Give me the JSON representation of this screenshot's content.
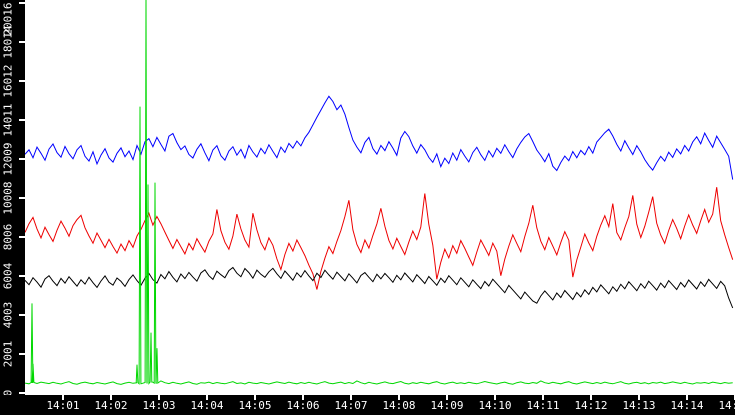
{
  "colors": {
    "axis_strip_bg": "#000000",
    "axis_label": "#ffffff",
    "plot_bg": "#ffffff"
  },
  "chart_data": {
    "type": "line",
    "title": "",
    "xlabel": "",
    "ylabel": "",
    "grid": false,
    "legend": "none",
    "ylim": [
      0,
      20016
    ],
    "xlim_minutes_after_1400": [
      0.2083,
      15.0
    ],
    "y_axis": {
      "tick_values": [
        0,
        2001.6,
        4003.2,
        6004.8,
        8006.4,
        10008,
        12009.6,
        14011.2,
        16012.8,
        18014.4,
        20016
      ],
      "tick_labels": [
        "0",
        "2001",
        "4003",
        "6004",
        "8006",
        "10008",
        "12009",
        "14011",
        "16012",
        "18014",
        "20016"
      ]
    },
    "x_axis": {
      "tick_minutes": [
        1,
        2,
        3,
        4,
        5,
        6,
        7,
        8,
        9,
        10,
        11,
        12,
        13,
        14,
        15
      ],
      "tick_labels": [
        "14:01",
        "14:02",
        "14:03",
        "14:04",
        "14:05",
        "14:06",
        "14:07",
        "14:08",
        "14:09",
        "14:10",
        "14:11",
        "14:12",
        "14:13",
        "14:14",
        "14:15"
      ]
    },
    "series": [
      {
        "name": "blue-series",
        "color": "#0000ff",
        "t_start": 0.2083,
        "t_step": 0.0833,
        "values": [
          12250,
          12480,
          12070,
          12620,
          12300,
          11950,
          12520,
          12780,
          12340,
          12100,
          12650,
          12280,
          12020,
          12480,
          12700,
          12150,
          11900,
          12380,
          11760,
          12210,
          12540,
          12060,
          11850,
          12300,
          12580,
          12130,
          12420,
          11980,
          12700,
          12260,
          12900,
          13050,
          12640,
          13120,
          12760,
          12420,
          13180,
          13320,
          12850,
          12490,
          12680,
          12240,
          12060,
          12510,
          12790,
          12330,
          11920,
          12470,
          12690,
          12180,
          11950,
          12420,
          12640,
          12210,
          12500,
          12060,
          12700,
          12370,
          12110,
          12560,
          12280,
          12740,
          12400,
          12080,
          12620,
          12350,
          12810,
          12570,
          12930,
          12680,
          13100,
          13380,
          13760,
          14150,
          14520,
          14890,
          15230,
          14960,
          14540,
          14780,
          14310,
          13620,
          12980,
          12620,
          12330,
          12860,
          13120,
          12540,
          12260,
          12710,
          12440,
          12900,
          12570,
          12200,
          13080,
          13420,
          13160,
          12680,
          12310,
          12750,
          12480,
          12090,
          11840,
          12270,
          11620,
          12050,
          11780,
          12320,
          11950,
          12490,
          12160,
          11860,
          12340,
          12610,
          12230,
          11940,
          12430,
          12110,
          12560,
          12300,
          12740,
          12390,
          12080,
          12530,
          12860,
          13140,
          13320,
          12910,
          12470,
          12190,
          11870,
          12280,
          11640,
          11420,
          11830,
          12160,
          11920,
          12390,
          12070,
          12450,
          12230,
          12640,
          12310,
          12880,
          13120,
          13360,
          13540,
          13190,
          12760,
          12420,
          12950,
          12580,
          12240,
          12690,
          12370,
          11980,
          11680,
          11440,
          11820,
          12150,
          11900,
          12360,
          12090,
          12530,
          12270,
          12700,
          12420,
          12880,
          13150,
          12790,
          13340,
          12960,
          12610,
          13180,
          12840,
          12500,
          12150,
          10950
        ]
      },
      {
        "name": "red-series",
        "color": "#ee0000",
        "t_start": 0.2083,
        "t_step": 0.0833,
        "values": [
          8240,
          8690,
          9010,
          8420,
          7960,
          8510,
          8130,
          7780,
          8350,
          8820,
          8460,
          8050,
          8590,
          8900,
          9120,
          8480,
          8060,
          7690,
          8210,
          7840,
          7460,
          7890,
          7520,
          7180,
          7640,
          7310,
          7820,
          7480,
          8060,
          8400,
          8850,
          9230,
          8610,
          9060,
          8690,
          8260,
          7830,
          7420,
          7880,
          7510,
          7140,
          7680,
          7350,
          7920,
          7560,
          7230,
          7790,
          8160,
          9420,
          8330,
          7740,
          7380,
          8060,
          9180,
          8420,
          7850,
          7490,
          9230,
          8370,
          7720,
          7350,
          7960,
          7580,
          6880,
          6340,
          7110,
          7680,
          7290,
          7850,
          7460,
          7050,
          6560,
          6120,
          5310,
          6240,
          6920,
          7510,
          7160,
          7780,
          8340,
          9060,
          9890,
          8370,
          7620,
          7210,
          7850,
          7440,
          8090,
          8680,
          9480,
          8550,
          7830,
          7390,
          7940,
          7520,
          7110,
          7740,
          8310,
          7880,
          8520,
          10240,
          8660,
          7590,
          5840,
          6710,
          7380,
          6940,
          7560,
          7170,
          7820,
          7420,
          6980,
          6550,
          7230,
          7850,
          7460,
          7060,
          7690,
          7280,
          6020,
          6870,
          7540,
          8120,
          7680,
          7250,
          8030,
          8710,
          9640,
          8480,
          7790,
          7360,
          7980,
          7540,
          7090,
          7720,
          8280,
          7840,
          5950,
          6830,
          7490,
          8160,
          7700,
          7310,
          8040,
          8620,
          9100,
          8540,
          9720,
          8230,
          7860,
          8490,
          9060,
          10140,
          8660,
          7980,
          8560,
          9280,
          10080,
          8720,
          8110,
          7680,
          8340,
          8900,
          8450,
          7920,
          8570,
          9140,
          8620,
          8190,
          8840,
          9420,
          8760,
          9180,
          10560,
          8840,
          8120,
          7460,
          6840
        ]
      },
      {
        "name": "black-series",
        "color": "#000000",
        "t_start": 0.2083,
        "t_step": 0.0833,
        "values": [
          5780,
          5560,
          5920,
          5690,
          5430,
          5850,
          6020,
          5740,
          5510,
          5880,
          5640,
          5970,
          5720,
          5480,
          5810,
          5590,
          5940,
          5660,
          5420,
          5750,
          6010,
          5680,
          5540,
          5900,
          5730,
          5470,
          5820,
          6060,
          5770,
          5530,
          5890,
          6140,
          5820,
          5640,
          6080,
          5860,
          6230,
          5940,
          5700,
          6110,
          5870,
          6190,
          5950,
          5740,
          6160,
          6320,
          6020,
          5830,
          6250,
          6070,
          5910,
          6280,
          6440,
          6150,
          5970,
          6390,
          6180,
          5890,
          6310,
          6090,
          5940,
          6220,
          6400,
          6120,
          5880,
          6260,
          6030,
          5790,
          6170,
          5950,
          6280,
          6010,
          5770,
          6150,
          5930,
          6300,
          6060,
          5840,
          6200,
          5980,
          5760,
          6120,
          5890,
          5650,
          6030,
          6180,
          5940,
          5710,
          6090,
          5860,
          6140,
          5920,
          5680,
          6040,
          5810,
          6160,
          5930,
          5700,
          6070,
          5850,
          5620,
          5980,
          5760,
          5530,
          5890,
          5670,
          6020,
          5790,
          5560,
          5910,
          5680,
          5450,
          5810,
          5580,
          5360,
          5720,
          5490,
          5840,
          5610,
          5380,
          5150,
          5520,
          5290,
          5060,
          4830,
          5180,
          4950,
          4720,
          4610,
          4980,
          5240,
          5010,
          4780,
          5130,
          4900,
          5260,
          5030,
          4800,
          5160,
          4930,
          5290,
          5060,
          5420,
          5190,
          5550,
          5320,
          5090,
          5450,
          5220,
          5580,
          5350,
          5710,
          5480,
          5250,
          5610,
          5380,
          5740,
          5510,
          5280,
          5640,
          5410,
          5770,
          5540,
          5310,
          5670,
          5440,
          5800,
          5570,
          5340,
          5700,
          5470,
          5830,
          5600,
          5370,
          5730,
          5500,
          4870,
          4360
        ]
      },
      {
        "name": "green-series",
        "color": "#00d800",
        "t_start": 0.2083,
        "t_step": 0.0833,
        "values": [
          510,
          470,
          540,
          490,
          560,
          520,
          480,
          550,
          500,
          460,
          530,
          580,
          490,
          450,
          520,
          560,
          510,
          470,
          540,
          500,
          460,
          520,
          570,
          480,
          440,
          510,
          550,
          500,
          530,
          470,
          540,
          490,
          560,
          510,
          620,
          530,
          480,
          550,
          500,
          460,
          520,
          570,
          490,
          450,
          530,
          510,
          560,
          480,
          540,
          500,
          470,
          530,
          580,
          490,
          520,
          460,
          550,
          510,
          480,
          540,
          500,
          460,
          520,
          570,
          530,
          490,
          560,
          510,
          470,
          540,
          490,
          550,
          500,
          460,
          530,
          580,
          510,
          470,
          520,
          560,
          480,
          540,
          490,
          620,
          530,
          470,
          550,
          500,
          460,
          520,
          570,
          510,
          480,
          540,
          590,
          500,
          460,
          530,
          490,
          550,
          510,
          470,
          540,
          580,
          500,
          460,
          520,
          560,
          490,
          530,
          480,
          550,
          510,
          470,
          530,
          590,
          540,
          500,
          460,
          520,
          560,
          490,
          450,
          530,
          570,
          510,
          480,
          540,
          500,
          620,
          530,
          490,
          550,
          510,
          470,
          540,
          580,
          500,
          460,
          520,
          570,
          530,
          480,
          540,
          490,
          560,
          510,
          470,
          530,
          580,
          500,
          460,
          520,
          550,
          490,
          530,
          470,
          540,
          510,
          560,
          480,
          520,
          570,
          530,
          490,
          550,
          500,
          460,
          530,
          510,
          540,
          490,
          560,
          520,
          480,
          540,
          500,
          530
        ],
        "spikes": [
          [
            0.354,
            4600
          ],
          [
            0.375,
            1500
          ],
          [
            2.542,
            1450
          ],
          [
            2.604,
            14700
          ],
          [
            2.729,
            20500
          ],
          [
            2.771,
            10700
          ],
          [
            2.833,
            3100
          ],
          [
            2.917,
            10800
          ],
          [
            2.958,
            2300
          ]
        ]
      }
    ]
  }
}
